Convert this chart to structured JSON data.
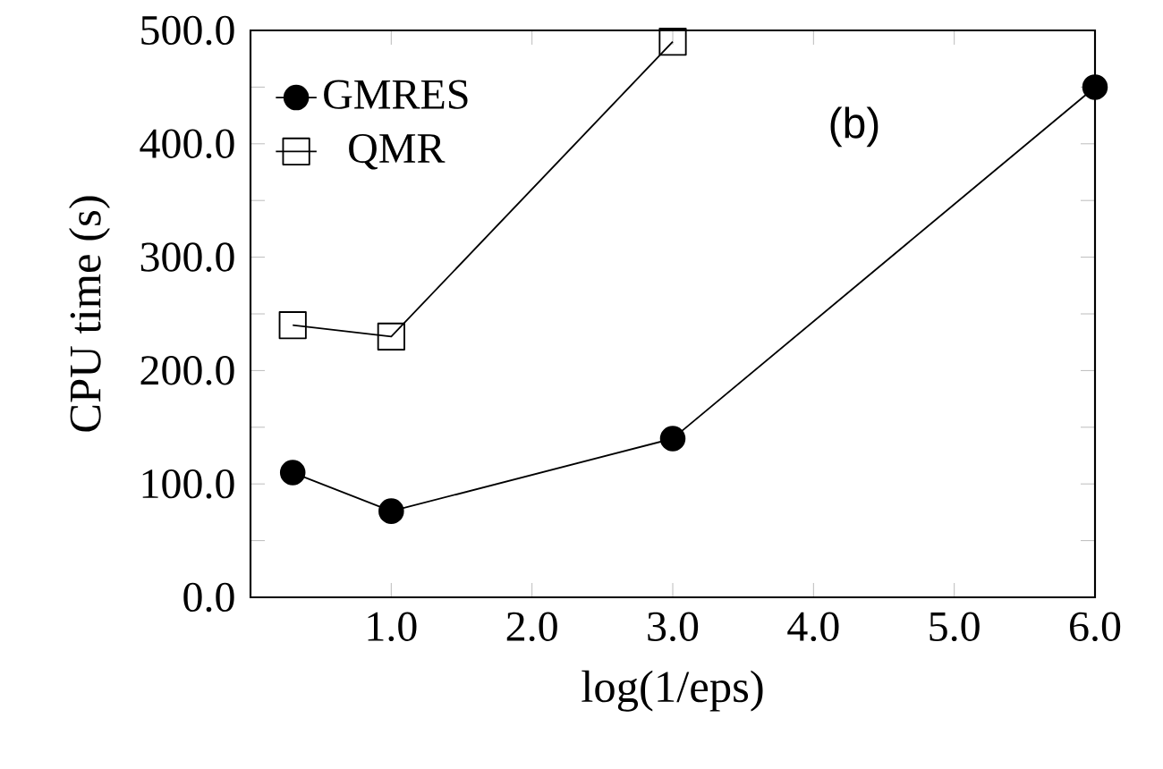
{
  "chart_data": {
    "type": "line",
    "xlabel": "log(1/eps)",
    "ylabel": "CPU time (s)",
    "annotations": [
      "(b)"
    ],
    "x": [
      0.3,
      1.0,
      3.0,
      6.0
    ],
    "series": [
      {
        "name": "GMRES",
        "color": "#000000",
        "marker": "circle",
        "values": [
          110,
          76,
          140,
          450
        ]
      },
      {
        "name": "QMR",
        "color": "#000000",
        "marker": "square",
        "values": [
          240,
          230,
          490,
          null
        ]
      }
    ],
    "xlim": [
      0,
      6
    ],
    "xticks": [
      {
        "value": 1,
        "label": "1.0"
      },
      {
        "value": 2,
        "label": "2.0"
      },
      {
        "value": 3,
        "label": "3.0"
      },
      {
        "value": 4,
        "label": "4.0"
      },
      {
        "value": 5,
        "label": "5.0"
      },
      {
        "value": 6,
        "label": "6.0"
      }
    ],
    "ylim": [
      0,
      500
    ],
    "yticks": [
      {
        "value": 0,
        "label": "0.0"
      },
      {
        "value": 50,
        "label": null
      },
      {
        "value": 100,
        "label": "100.0"
      },
      {
        "value": 150,
        "label": null
      },
      {
        "value": 200,
        "label": "200.0"
      },
      {
        "value": 250,
        "label": null
      },
      {
        "value": 300,
        "label": "300.0"
      },
      {
        "value": 350,
        "label": null
      },
      {
        "value": 400,
        "label": "400.0"
      },
      {
        "value": 450,
        "label": null
      },
      {
        "value": 500,
        "label": "500.0"
      }
    ],
    "grid": false,
    "legend": "top left",
    "line_style": "solid"
  }
}
